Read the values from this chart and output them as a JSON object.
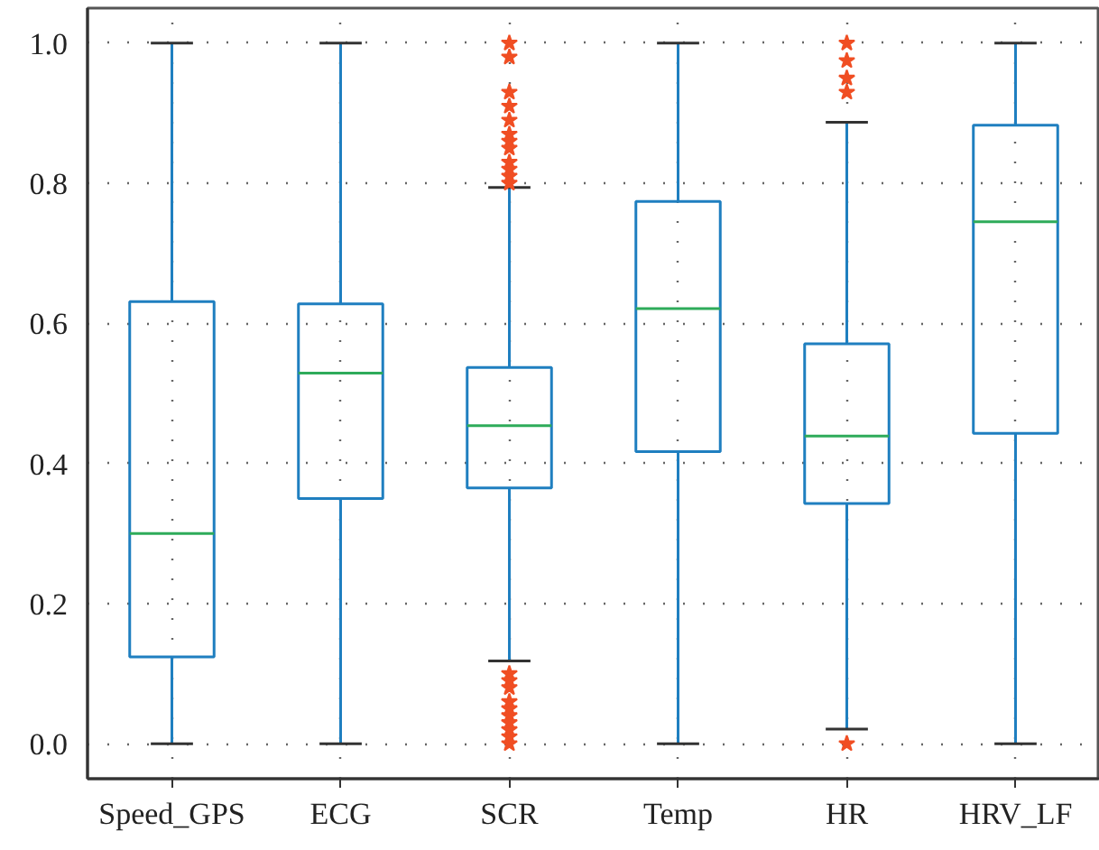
{
  "chart_data": {
    "type": "box",
    "categories": [
      "Speed_GPS",
      "ECG",
      "SCR",
      "Temp",
      "HR",
      "HRV_LF"
    ],
    "color": "#1f7fc0",
    "marker": "star",
    "grid": true,
    "ylim": [
      -0.05,
      1.05
    ],
    "yticks": [
      {
        "value": 0,
        "label": "0.0"
      },
      0.2,
      0.4,
      0.6,
      0.8,
      {
        "value": 1,
        "label": "1.0"
      }
    ],
    "boxes": [
      {
        "low": 0,
        "q1": 0.124,
        "median": 0.3,
        "q3": 0.631,
        "high": 1
      },
      {
        "low": 0,
        "q1": 0.35,
        "median": 0.529,
        "q3": 0.628,
        "high": 1
      },
      {
        "low": 0.118,
        "q1": 0.365,
        "median": 0.454,
        "q3": 0.537,
        "high": 0.794,
        "outliers": [
          1.0,
          0.98,
          0.93,
          0.91,
          0.89,
          0.87,
          0.86,
          0.85,
          0.83,
          0.82,
          0.81,
          0.8,
          0.1,
          0.09,
          0.08,
          0.06,
          0.05,
          0.04,
          0.03,
          0.02,
          0.01,
          0.0
        ]
      },
      {
        "low": 0,
        "q1": 0.417,
        "median": 0.621,
        "q3": 0.774,
        "high": 1
      },
      {
        "low": 0.021,
        "q1": 0.343,
        "median": 0.439,
        "q3": 0.571,
        "high": 0.887,
        "outliers": [
          1.0,
          0.975,
          0.95,
          0.93,
          0.0
        ]
      },
      {
        "low": 0,
        "q1": 0.443,
        "median": 0.745,
        "q3": 0.883,
        "high": 1
      }
    ]
  }
}
